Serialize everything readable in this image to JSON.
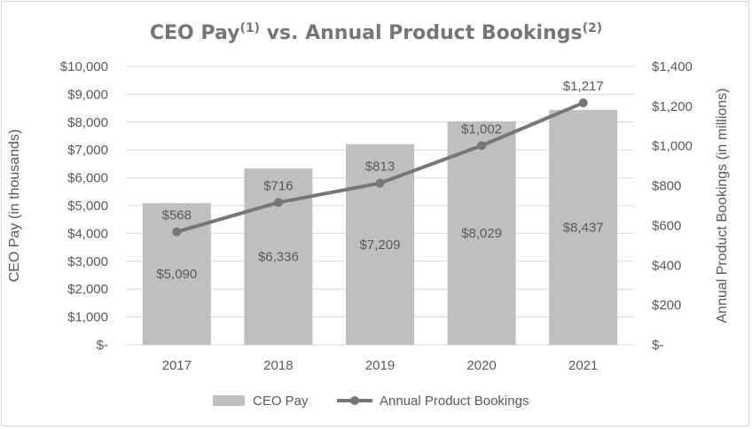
{
  "chart_data": {
    "type": "bar+line",
    "title": "CEO Pay",
    "title_sup1": "(1)",
    "title_mid": " vs. Annual Product Bookings",
    "title_sup2": "(2)",
    "categories": [
      "2017",
      "2018",
      "2019",
      "2020",
      "2021"
    ],
    "series": [
      {
        "name": "CEO Pay",
        "type": "bar",
        "axis": "left",
        "values": [
          5090,
          6336,
          7209,
          8029,
          8437
        ],
        "labels": [
          "$5,090",
          "$6,336",
          "$7,209",
          "$8,029",
          "$8,437"
        ],
        "color": "#bfbfbf"
      },
      {
        "name": "Annual Product Bookings",
        "type": "line",
        "axis": "right",
        "values": [
          568,
          716,
          813,
          1002,
          1217
        ],
        "labels": [
          "$568",
          "$716",
          "$813",
          "$1,002",
          "$1,217"
        ],
        "color": "#767676"
      }
    ],
    "y_left": {
      "label": "CEO Pay (in thousands)",
      "min": 0,
      "max": 10000,
      "step": 1000,
      "ticks": [
        "$-",
        "$1,000",
        "$2,000",
        "$3,000",
        "$4,000",
        "$5,000",
        "$6,000",
        "$7,000",
        "$8,000",
        "$9,000",
        "$10,000"
      ]
    },
    "y_right": {
      "label": "Annual Product Bookings (in millions)",
      "min": 0,
      "max": 1400,
      "step": 200,
      "ticks": [
        "$-",
        "$200",
        "$400",
        "$600",
        "$800",
        "$1,000",
        "$1,200",
        "$1,400"
      ]
    },
    "grid": true,
    "legend": "bottom-center"
  }
}
